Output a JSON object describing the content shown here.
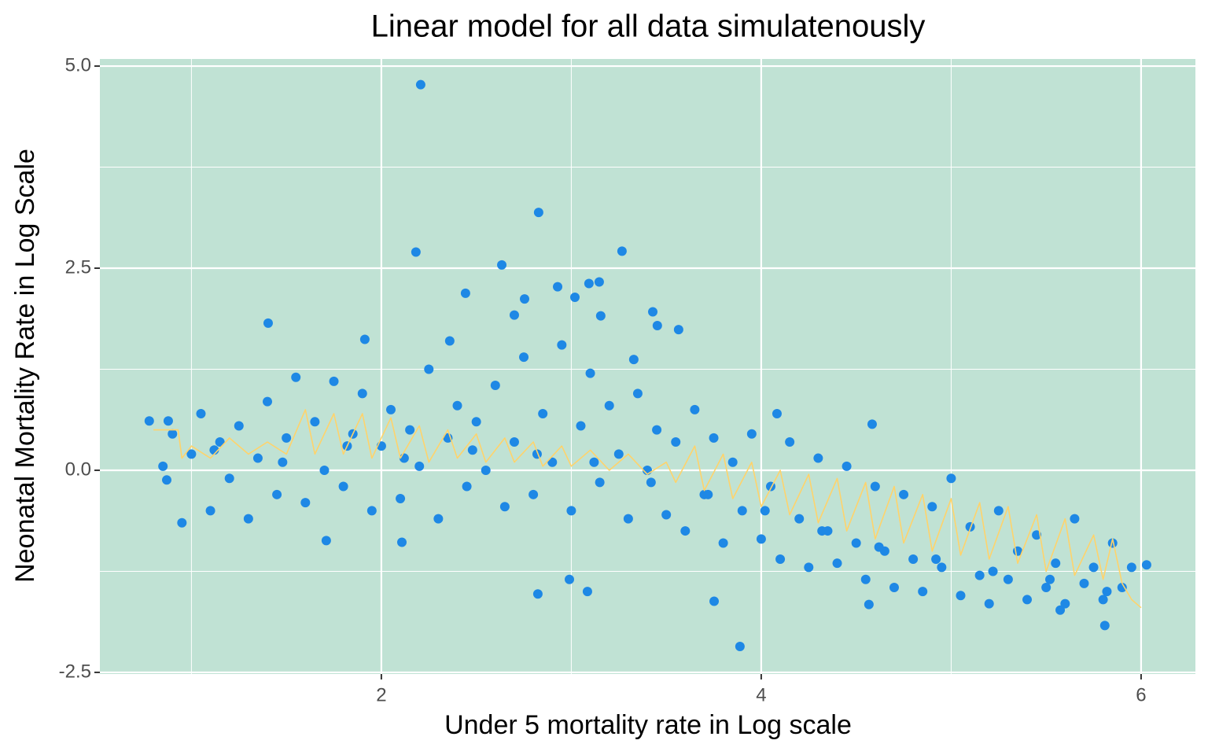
{
  "chart_data": {
    "type": "scatter",
    "title": "Linear model for all data simulatenously",
    "x_label": "Under 5 mortality rate in Log scale",
    "y_label": "Neonatal Mortality Rate in Log Scale",
    "xlim": [
      0.518,
      6.286
    ],
    "ylim": [
      -2.52,
      5.088
    ],
    "xticks": [
      2,
      4,
      6
    ],
    "yticks": [
      {
        "value": -2.5,
        "label": "-2.5"
      },
      {
        "value": 0,
        "label": "0.0"
      },
      {
        "value": 2.5,
        "label": "2.5"
      },
      {
        "value": 5,
        "label": "5.0"
      }
    ],
    "x_minor_ticks": [
      1,
      3,
      5
    ],
    "y_minor_ticks": [
      -1.25,
      1.25,
      3.75
    ],
    "grid": true,
    "panel_color": "#c0e2d4",
    "series": [
      {
        "type": "scatter",
        "color": "#1e88e5",
        "x": [
          2.207,
          2.828,
          2.182,
          3.267,
          2.634,
          3.147,
          3.093,
          2.928,
          2.443,
          3.019,
          2.754,
          3.429,
          3.453,
          1.404,
          3.565,
          3.155,
          2.7,
          1.913,
          2.36,
          3.329,
          3.752,
          3.888,
          2.824,
          2.99,
          3.085,
          6.029,
          5.809,
          4.584,
          4.083,
          2.108,
          1.71,
          0.778,
          0.878,
          0.87,
          4.567,
          5.574,
          0.85,
          0.9,
          0.95,
          1.0,
          1.05,
          1.1,
          1.15,
          1.2,
          1.25,
          1.3,
          1.35,
          1.4,
          1.45,
          1.5,
          1.55,
          1.6,
          1.65,
          1.7,
          1.75,
          1.8,
          1.85,
          1.9,
          1.95,
          2.0,
          2.05,
          2.1,
          2.15,
          2.2,
          2.25,
          2.3,
          2.35,
          2.4,
          2.45,
          2.5,
          2.55,
          2.6,
          2.65,
          2.7,
          2.75,
          2.8,
          2.85,
          2.9,
          2.95,
          3.0,
          3.05,
          3.1,
          3.15,
          3.2,
          3.25,
          3.3,
          3.35,
          3.4,
          3.45,
          3.5,
          3.55,
          3.6,
          3.65,
          3.7,
          3.75,
          3.8,
          3.85,
          3.9,
          3.95,
          4.0,
          4.05,
          4.1,
          4.15,
          4.2,
          4.25,
          4.3,
          4.35,
          4.4,
          4.45,
          4.5,
          4.55,
          4.6,
          4.65,
          4.7,
          4.75,
          4.8,
          4.85,
          4.9,
          4.95,
          5.0,
          5.05,
          5.1,
          5.15,
          5.2,
          5.25,
          5.3,
          5.35,
          5.4,
          5.45,
          5.5,
          5.55,
          5.6,
          5.65,
          5.7,
          5.75,
          5.8,
          5.85,
          5.9,
          5.95,
          1.12,
          1.48,
          1.82,
          2.12,
          2.48,
          2.82,
          3.12,
          3.42,
          3.72,
          4.02,
          4.32,
          4.62,
          4.92,
          5.22,
          5.52,
          5.82
        ],
        "values": [
          4.77,
          3.19,
          2.7,
          2.71,
          2.54,
          2.33,
          2.31,
          2.27,
          2.19,
          2.14,
          2.12,
          1.96,
          1.79,
          1.82,
          1.74,
          1.91,
          1.92,
          1.62,
          1.6,
          1.37,
          -1.62,
          -2.18,
          -1.53,
          -1.35,
          -1.5,
          -1.17,
          -1.92,
          0.57,
          0.7,
          -0.89,
          -0.87,
          0.61,
          0.61,
          -0.12,
          -1.66,
          -1.73,
          0.05,
          0.45,
          -0.65,
          0.2,
          0.7,
          -0.5,
          0.35,
          -0.1,
          0.55,
          -0.6,
          0.15,
          0.85,
          -0.3,
          0.4,
          1.15,
          -0.4,
          0.6,
          0.0,
          1.1,
          -0.2,
          0.45,
          0.95,
          -0.5,
          0.3,
          0.75,
          -0.35,
          0.5,
          0.05,
          1.25,
          -0.6,
          0.4,
          0.8,
          -0.2,
          0.6,
          0.0,
          1.05,
          -0.45,
          0.35,
          1.4,
          -0.3,
          0.7,
          0.1,
          1.55,
          -0.5,
          0.55,
          1.2,
          -0.15,
          0.8,
          0.2,
          -0.6,
          0.95,
          0.0,
          0.5,
          -0.55,
          0.35,
          -0.75,
          0.75,
          -0.3,
          0.4,
          -0.9,
          0.1,
          -0.5,
          0.45,
          -0.85,
          -0.2,
          -1.1,
          0.35,
          -0.6,
          -1.2,
          0.15,
          -0.75,
          -1.15,
          0.05,
          -0.9,
          -1.35,
          -0.2,
          -1.0,
          -1.45,
          -0.3,
          -1.1,
          -1.5,
          -0.45,
          -1.2,
          -0.1,
          -1.55,
          -0.7,
          -1.3,
          -1.65,
          -0.5,
          -1.35,
          -1.0,
          -1.6,
          -0.8,
          -1.45,
          -1.15,
          -1.65,
          -0.6,
          -1.4,
          -1.2,
          -1.6,
          -0.9,
          -1.45,
          -1.2,
          0.25,
          0.1,
          0.3,
          0.15,
          0.25,
          0.2,
          0.1,
          -0.15,
          -0.3,
          -0.5,
          -0.75,
          -0.95,
          -1.1,
          -1.25,
          -1.35,
          -1.5
        ]
      },
      {
        "type": "line",
        "color": "#ffd36b",
        "x": [
          0.8,
          0.93,
          0.95,
          1.0,
          1.1,
          1.2,
          1.3,
          1.4,
          1.5,
          1.6,
          1.65,
          1.75,
          1.8,
          1.9,
          1.95,
          2.05,
          2.1,
          2.2,
          2.25,
          2.35,
          2.4,
          2.5,
          2.55,
          2.65,
          2.7,
          2.8,
          2.85,
          2.95,
          3.0,
          3.1,
          3.2,
          3.3,
          3.4,
          3.5,
          3.55,
          3.65,
          3.7,
          3.8,
          3.85,
          3.95,
          4.0,
          4.1,
          4.15,
          4.25,
          4.3,
          4.4,
          4.45,
          4.55,
          4.6,
          4.7,
          4.75,
          4.85,
          4.9,
          5.0,
          5.05,
          5.15,
          5.2,
          5.3,
          5.35,
          5.45,
          5.5,
          5.6,
          5.65,
          5.75,
          5.8,
          5.85,
          5.9,
          5.95,
          6.0
        ],
        "values": [
          0.5,
          0.5,
          0.15,
          0.3,
          0.15,
          0.4,
          0.2,
          0.35,
          0.2,
          0.75,
          0.2,
          0.7,
          0.2,
          0.7,
          0.15,
          0.65,
          0.15,
          0.55,
          0.1,
          0.5,
          0.15,
          0.45,
          0.1,
          0.4,
          0.1,
          0.35,
          0.05,
          0.3,
          0.05,
          0.25,
          0.0,
          0.2,
          -0.05,
          0.1,
          -0.15,
          0.3,
          -0.25,
          0.2,
          -0.35,
          0.1,
          -0.45,
          0.0,
          -0.55,
          -0.05,
          -0.65,
          -0.1,
          -0.75,
          -0.15,
          -0.85,
          -0.2,
          -0.9,
          -0.3,
          -1.0,
          -0.35,
          -1.05,
          -0.4,
          -1.1,
          -0.45,
          -1.15,
          -0.55,
          -1.25,
          -0.6,
          -1.3,
          -0.8,
          -1.35,
          -0.85,
          -1.4,
          -1.6,
          -1.7
        ]
      }
    ]
  }
}
